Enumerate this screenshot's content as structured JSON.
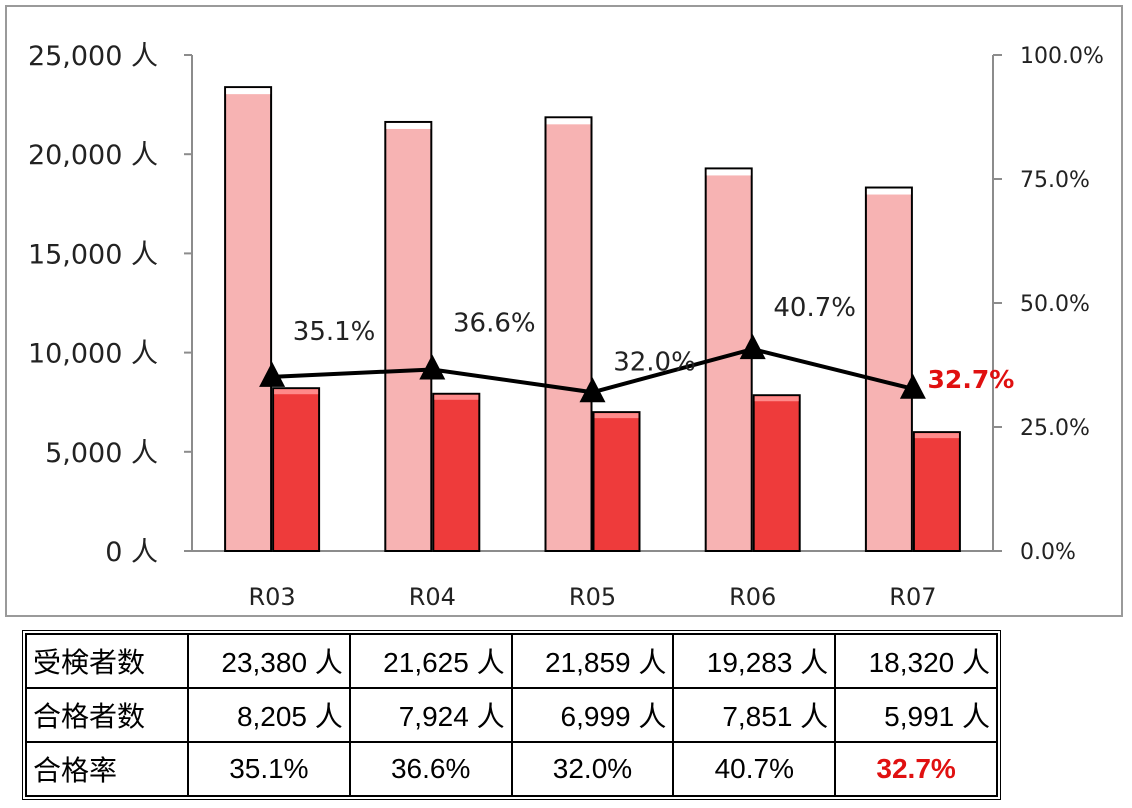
{
  "chart_data": {
    "type": "bar",
    "categories": [
      "R03",
      "R04",
      "R05",
      "R06",
      "R07"
    ],
    "series": [
      {
        "type": "bar",
        "values": [
          23380,
          21625,
          21859,
          19283,
          18320
        ],
        "color": "#f7b3b3"
      },
      {
        "type": "bar",
        "values": [
          8205,
          7924,
          6999,
          7851,
          5991
        ],
        "color": "#ee3b3b"
      },
      {
        "type": "line",
        "axis": "right",
        "values": [
          35.1,
          36.6,
          32.0,
          40.7,
          32.7
        ],
        "color": "#000000",
        "marker": "triangle"
      }
    ],
    "data_labels": [
      "35.1%",
      "36.6%",
      "32.0%",
      "40.7%",
      "32.7%"
    ],
    "highlight_color": "#e01010",
    "highlight_index": 4,
    "y_left": {
      "min": 0,
      "max": 25000,
      "ticks": [
        "0 人",
        "5,000 人",
        "10,000 人",
        "15,000 人",
        "20,000 人",
        "25,000 人"
      ]
    },
    "y_right": {
      "min": 0,
      "max": 100,
      "ticks": [
        "0.0%",
        "25.0%",
        "50.0%",
        "75.0%",
        "100.0%"
      ]
    },
    "grid": false
  },
  "table": {
    "rows": [
      {
        "label": "受検者数",
        "cells": [
          "23,380 人",
          "21,625 人",
          "21,859 人",
          "19,283 人",
          "18,320 人"
        ]
      },
      {
        "label": "合格者数",
        "cells": [
          "8,205 人",
          "7,924 人",
          "6,999 人",
          "7,851 人",
          "5,991 人"
        ]
      },
      {
        "label": "合格率",
        "cells": [
          "35.1%",
          "36.6%",
          "32.0%",
          "40.7%",
          "32.7%"
        ]
      }
    ]
  }
}
